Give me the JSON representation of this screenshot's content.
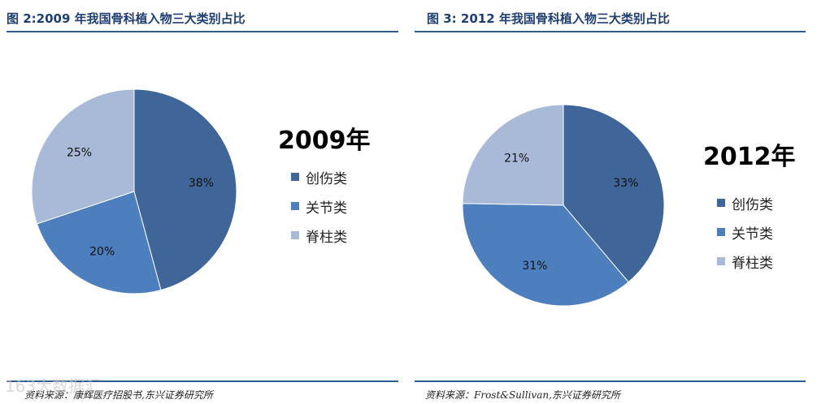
{
  "colors": {
    "trauma": "#3f6599",
    "joint": "#4d7fbf",
    "spine": "#a9b9d8",
    "rule": "#2f5a92",
    "title": "#1f3f73"
  },
  "watermark": "163大数据汇",
  "chart_data": [
    {
      "type": "pie",
      "fig_title": "图 2:2009 年我国骨科植入物三大类别占比",
      "title": "2009年",
      "categories": [
        "创伤类",
        "关节类",
        "脊柱类"
      ],
      "values": [
        38,
        20,
        25
      ],
      "labels": [
        "38%",
        "20%",
        "25%"
      ],
      "legend": "right",
      "source": "资料来源：康辉医疗招股书,东兴证券研究所"
    },
    {
      "type": "pie",
      "fig_title": "图 3: 2012 年我国骨科植入物三大类别占比",
      "title": "2012年",
      "categories": [
        "创伤类",
        "关节类",
        "脊柱类"
      ],
      "values": [
        33,
        31,
        21
      ],
      "labels": [
        "33%",
        "31%",
        "21%"
      ],
      "legend": "right",
      "source": "资料来源：Frost&Sullivan,东兴证券研究所"
    }
  ]
}
